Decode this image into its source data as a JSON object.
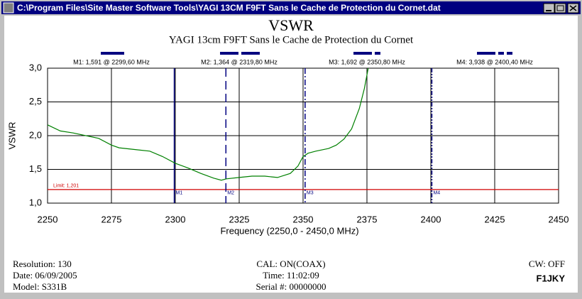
{
  "window": {
    "title": "C:\\Program Files\\Site Master Software Tools\\YAGI 13CM F9FT Sans le Cache de Protection du Cornet.dat"
  },
  "chart_data": {
    "type": "line",
    "title": "VSWR",
    "subtitle": "YAGI 13cm F9FT Sans le Cache de Protection du Cornet",
    "x_label": "Frequency (2250,0 - 2450,0 MHz)",
    "y_label": "VSWR",
    "xlim": [
      2250,
      2450
    ],
    "xticks": [
      2250,
      2275,
      2300,
      2325,
      2350,
      2375,
      2400,
      2425,
      2450
    ],
    "ylim": [
      1,
      3
    ],
    "yticks": [
      {
        "value": 1,
        "label": "1,0"
      },
      {
        "value": 1.5,
        "label": "1,5"
      },
      {
        "value": 2,
        "label": "2,0"
      },
      {
        "value": 2.5,
        "label": "2,5"
      },
      {
        "value": 3,
        "label": "3,0"
      }
    ],
    "grid": true,
    "series": [
      {
        "color": "#008000",
        "x": [
          2250,
          2255,
          2260,
          2270,
          2275,
          2278,
          2285,
          2290,
          2295,
          2300,
          2305,
          2310,
          2315,
          2318,
          2320,
          2325,
          2330,
          2335,
          2340,
          2345,
          2348,
          2350,
          2352,
          2355,
          2360,
          2363,
          2366,
          2369,
          2372,
          2374,
          2375.5
        ],
        "values": [
          2.16,
          2.07,
          2.04,
          1.96,
          1.86,
          1.82,
          1.79,
          1.77,
          1.69,
          1.59,
          1.52,
          1.44,
          1.37,
          1.34,
          1.36,
          1.38,
          1.4,
          1.4,
          1.38,
          1.44,
          1.55,
          1.69,
          1.74,
          1.77,
          1.81,
          1.86,
          1.95,
          2.1,
          2.4,
          2.7,
          3.0
        ]
      }
    ],
    "limit": {
      "value": 1.201,
      "label": "Limit: 1,201",
      "color": "#d00000"
    },
    "markers": [
      {
        "tag": "M1",
        "label": "M1: 1,591  @ 2299,60 MHz",
        "x": 2299.6
      },
      {
        "tag": "M2",
        "label": "M2: 1,364  @ 2319,80 MHz",
        "x": 2319.8
      },
      {
        "tag": "M3",
        "label": "M3: 1,692  @ 2350,80 MHz",
        "x": 2350.8
      },
      {
        "tag": "M4",
        "label": "M4: 3,938  @ 2400,40 MHz",
        "x": 2400.4
      }
    ],
    "marker_color": "#000080"
  },
  "footer": {
    "resolution": "Resolution:  130",
    "date": "Date: 06/09/2005",
    "model": "Model:  S331B",
    "cal": "CAL: ON(COAX)",
    "time": "Time: 11:02:09",
    "serial": "Serial #: 00000000",
    "cw": "CW: OFF",
    "call": "F1JKY"
  }
}
